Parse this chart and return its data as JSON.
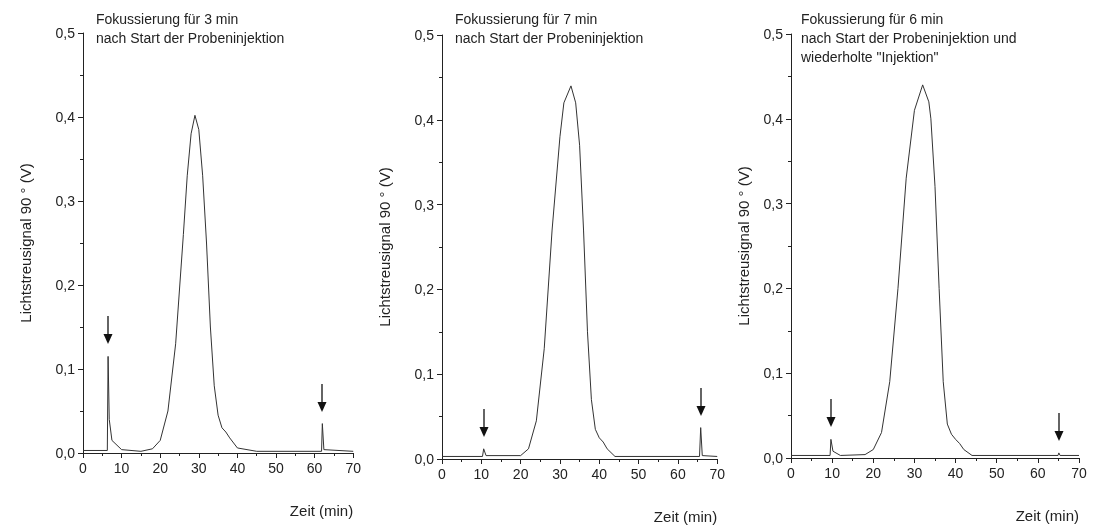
{
  "chart_data": [
    {
      "type": "line",
      "title": "Fokussierung für 3 min\nnach Start der Probeninjektion",
      "xlabel": "Zeit (min)",
      "ylabel": "Lichtstreusignal 90 ° (V)",
      "xlim": [
        0,
        70
      ],
      "xticks": [
        0,
        10,
        20,
        30,
        40,
        50,
        60,
        70
      ],
      "ylim": [
        0,
        0.5
      ],
      "yticks": [
        {
          "value": 0,
          "label": "0,0"
        },
        {
          "value": 0.1,
          "label": "0,1"
        },
        {
          "value": 0.2,
          "label": "0,2"
        },
        {
          "value": 0.3,
          "label": "0,3"
        },
        {
          "value": 0.4,
          "label": "0,4"
        },
        {
          "value": 0.5,
          "label": "0,5"
        }
      ],
      "grid": false,
      "marker": "none",
      "line_style": "solid",
      "series": [
        {
          "color": "#333333",
          "x": [
            0,
            6.3,
            6.5,
            6.8,
            7.5,
            10,
            15,
            18,
            20,
            22,
            24,
            26,
            27,
            28,
            29,
            30,
            31,
            32,
            33,
            34,
            35,
            36,
            37,
            38,
            40,
            45,
            61.8,
            62,
            62.4,
            70
          ],
          "values": [
            0.003,
            0.003,
            0.115,
            0.04,
            0.015,
            0.004,
            0.002,
            0.005,
            0.015,
            0.05,
            0.13,
            0.26,
            0.33,
            0.38,
            0.402,
            0.385,
            0.33,
            0.25,
            0.15,
            0.08,
            0.045,
            0.03,
            0.025,
            0.018,
            0.006,
            0.002,
            0.002,
            0.035,
            0.004,
            0.002
          ]
        }
      ]
    },
    {
      "type": "line",
      "title": "Fokussierung für 7 min\nnach Start der Probeninjektion",
      "xlabel": "Zeit (min)",
      "ylabel": "Lichtstreusignal 90 ° (V)",
      "xlim": [
        0,
        70
      ],
      "xticks": [
        0,
        10,
        20,
        30,
        40,
        50,
        60,
        70
      ],
      "ylim": [
        0,
        0.5
      ],
      "yticks": [
        {
          "value": 0,
          "label": "0,0"
        },
        {
          "value": 0.1,
          "label": "0,1"
        },
        {
          "value": 0.2,
          "label": "0,2"
        },
        {
          "value": 0.3,
          "label": "0,3"
        },
        {
          "value": 0.4,
          "label": "0,4"
        },
        {
          "value": 0.5,
          "label": "0,5"
        }
      ],
      "grid": false,
      "marker": "none",
      "line_style": "solid",
      "series": [
        {
          "color": "#333333",
          "x": [
            0,
            10.3,
            10.6,
            11.2,
            20,
            22,
            24,
            26,
            28,
            30,
            31,
            32.8,
            34,
            35,
            36,
            37,
            38,
            39,
            40,
            41,
            42,
            44,
            65.5,
            65.8,
            66.2,
            70
          ],
          "values": [
            0.003,
            0.003,
            0.012,
            0.004,
            0.004,
            0.012,
            0.045,
            0.13,
            0.27,
            0.38,
            0.42,
            0.44,
            0.42,
            0.37,
            0.27,
            0.15,
            0.07,
            0.035,
            0.025,
            0.02,
            0.012,
            0.003,
            0.003,
            0.037,
            0.004,
            0.003
          ]
        }
      ]
    },
    {
      "type": "line",
      "title": "Fokussierung für 6 min\nnach Start der Probeninjektion und\nwiederholte \"Injektion\"",
      "xlabel": "Zeit (min)",
      "ylabel": "Lichtstreusignal 90 ° (V)",
      "xlim": [
        0,
        70
      ],
      "xticks": [
        0,
        10,
        20,
        30,
        40,
        50,
        60,
        70
      ],
      "ylim": [
        0,
        0.5
      ],
      "yticks": [
        {
          "value": 0,
          "label": "0,0"
        },
        {
          "value": 0.1,
          "label": "0,1"
        },
        {
          "value": 0.2,
          "label": "0,2"
        },
        {
          "value": 0.3,
          "label": "0,3"
        },
        {
          "value": 0.4,
          "label": "0,4"
        },
        {
          "value": 0.5,
          "label": "0,5"
        }
      ],
      "grid": false,
      "marker": "none",
      "line_style": "solid",
      "series": [
        {
          "color": "#333333",
          "x": [
            0,
            9.5,
            9.7,
            10.2,
            12,
            18,
            20,
            22,
            24,
            26,
            28,
            30,
            32,
            33.5,
            34,
            35,
            36,
            37,
            38,
            39,
            40,
            41,
            42,
            44,
            64.9,
            65.1,
            65.4,
            70
          ],
          "values": [
            0.003,
            0.003,
            0.022,
            0.008,
            0.003,
            0.004,
            0.01,
            0.03,
            0.09,
            0.2,
            0.33,
            0.41,
            0.44,
            0.42,
            0.4,
            0.32,
            0.2,
            0.09,
            0.04,
            0.028,
            0.022,
            0.017,
            0.01,
            0.003,
            0.003,
            0.006,
            0.003,
            0.003
          ]
        }
      ]
    }
  ]
}
